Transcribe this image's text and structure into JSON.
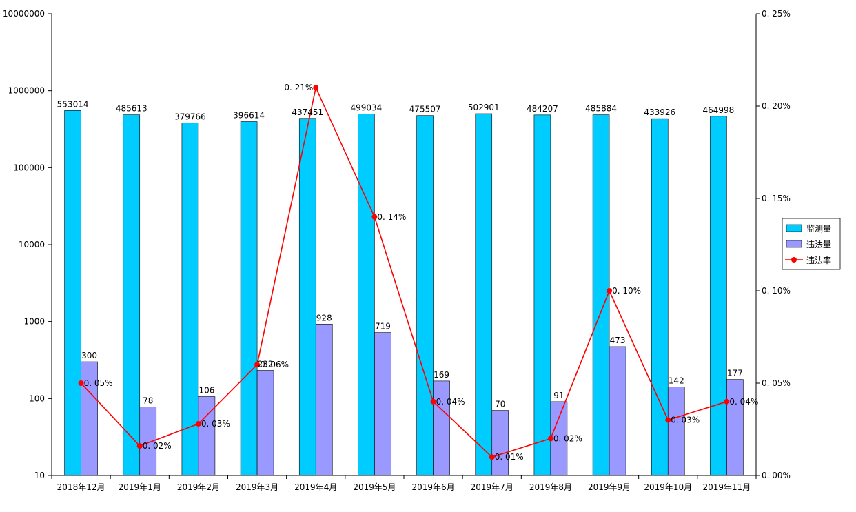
{
  "chart_data": {
    "type": "bar",
    "categories": [
      "2018年12月",
      "2019年1月",
      "2019年2月",
      "2019年3月",
      "2019年4月",
      "2019年5月",
      "2019年6月",
      "2019年7月",
      "2019年8月",
      "2019年9月",
      "2019年10月",
      "2019年11月"
    ],
    "series": [
      {
        "name": "监测量",
        "kind": "bar",
        "axis": "left",
        "color": "#00CCFF",
        "values": [
          553014,
          485613,
          379766,
          396614,
          437451,
          499034,
          475507,
          502901,
          484207,
          485884,
          433926,
          464998
        ],
        "labels": [
          "553014",
          "485613",
          "379766",
          "396614",
          "437451",
          "499034",
          "475507",
          "502901",
          "484207",
          "485884",
          "433926",
          "464998"
        ]
      },
      {
        "name": "违法量",
        "kind": "bar",
        "axis": "left",
        "color": "#9999FF",
        "values": [
          300,
          78,
          106,
          232,
          928,
          719,
          169,
          70,
          91,
          473,
          142,
          177
        ],
        "labels": [
          "300",
          "78",
          "106",
          "232",
          "928",
          "719",
          "169",
          "70",
          "91",
          "473",
          "142",
          "177"
        ]
      },
      {
        "name": "违法率",
        "kind": "line",
        "axis": "right",
        "color": "#FF0000",
        "values": [
          0.05,
          0.016,
          0.028,
          0.06,
          0.21,
          0.14,
          0.04,
          0.01,
          0.02,
          0.1,
          0.03,
          0.04
        ],
        "labels": [
          "0. 05%",
          "0. 02%",
          "0. 03%",
          "0. 06%",
          "0. 21%",
          "0. 14%",
          "0. 04%",
          "0. 01%",
          "0. 02%",
          "0. 10%",
          "0. 03%",
          "0. 04%"
        ]
      }
    ],
    "y_left": {
      "scale": "log",
      "range": [
        10,
        10000000
      ],
      "ticks": [
        10,
        100,
        1000,
        10000,
        100000,
        1000000,
        10000000
      ],
      "tick_labels": [
        "10",
        "100",
        "1000",
        "10000",
        "100000",
        "1000000",
        "10000000"
      ]
    },
    "y_right": {
      "scale": "linear",
      "range": [
        0,
        0.25
      ],
      "ticks": [
        0,
        0.05,
        0.1,
        0.15,
        0.2,
        0.25
      ],
      "tick_labels": [
        "0. 00%",
        "0. 05%",
        "0. 10%",
        "0. 15%",
        "0. 20%",
        "0. 25%"
      ]
    },
    "grid": false,
    "legend": {
      "placement": "right",
      "entries": [
        "监测量",
        "违法量",
        "违法率"
      ]
    }
  }
}
